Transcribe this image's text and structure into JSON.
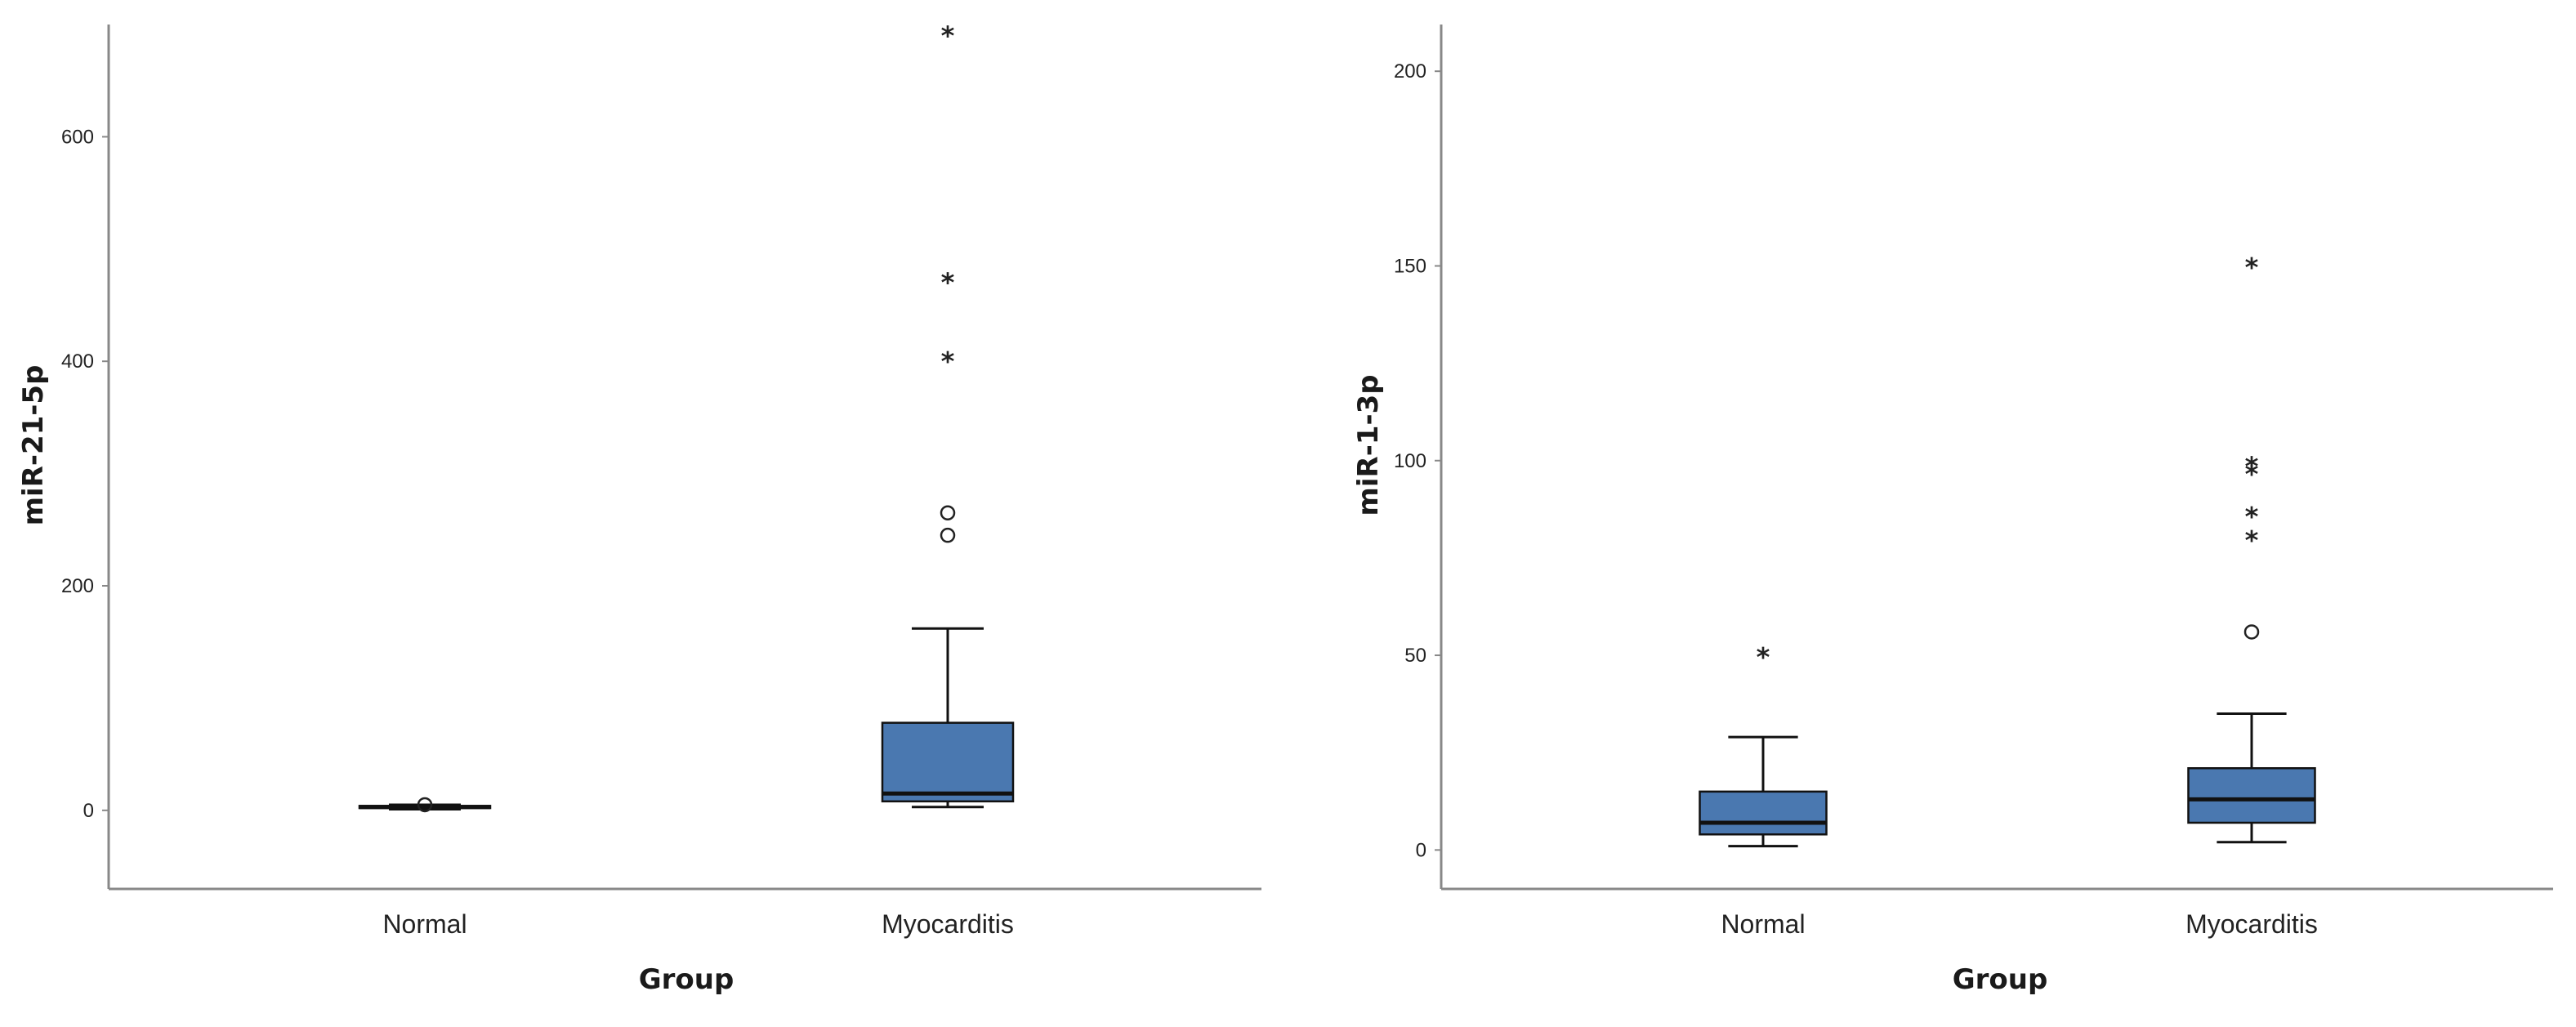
{
  "chart_data": [
    {
      "type": "boxplot",
      "title": "",
      "xlabel": "Group",
      "ylabel": "miR-21-5p",
      "ylim": [
        -70,
        700
      ],
      "yticks": [
        0,
        200,
        400,
        600
      ],
      "grid": false,
      "box_color": "#4a78b0",
      "categories": [
        "Normal",
        "Myocarditis"
      ],
      "boxes": [
        {
          "category": "Normal",
          "whisker_low": 1,
          "q1": 2,
          "median": 3,
          "q3": 4,
          "whisker_high": 5,
          "outliers": [
            5
          ],
          "extremes": []
        },
        {
          "category": "Myocarditis",
          "whisker_low": 3,
          "q1": 8,
          "median": 15,
          "q3": 78,
          "whisker_high": 162,
          "outliers": [
            265,
            245
          ],
          "extremes": [
            695,
            475,
            405
          ]
        }
      ]
    },
    {
      "type": "boxplot",
      "title": "",
      "xlabel": "Group",
      "ylabel": "miR-1-3p",
      "ylim": [
        -10,
        212
      ],
      "yticks": [
        0,
        50,
        100,
        150,
        200
      ],
      "grid": false,
      "box_color": "#4a78b0",
      "categories": [
        "Normal",
        "Myocarditis"
      ],
      "boxes": [
        {
          "category": "Normal",
          "whisker_low": 1,
          "q1": 4,
          "median": 7,
          "q3": 15,
          "whisker_high": 29,
          "outliers": [],
          "extremes": [
            51
          ]
        },
        {
          "category": "Myocarditis",
          "whisker_low": 2,
          "q1": 7,
          "median": 13,
          "q3": 21,
          "whisker_high": 35,
          "outliers": [
            56
          ],
          "extremes": [
            151,
            100,
            98,
            87,
            81
          ]
        }
      ]
    }
  ]
}
